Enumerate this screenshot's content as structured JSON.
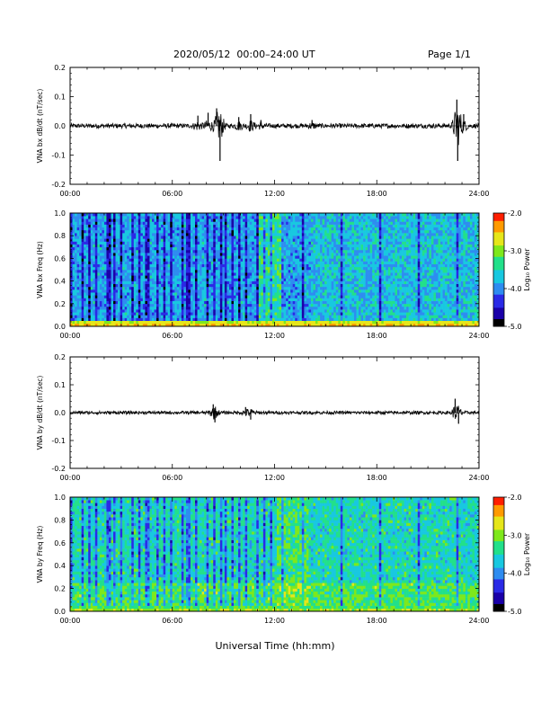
{
  "header": {
    "title": "2020/05/12  00:00–24:00 UT",
    "page": "Page 1/1"
  },
  "xlabel": "Universal Time (hh:mm)",
  "colors": {
    "trace": "#000000",
    "colormap": [
      "#000000",
      "#1a00a8",
      "#2a2ae6",
      "#2e8cf0",
      "#18c8e0",
      "#22e08a",
      "#7ee81c",
      "#e6e61a",
      "#ff9a00",
      "#ff1e00"
    ]
  },
  "chart_data": [
    {
      "type": "line",
      "ylabel": "VNA bx dB/dt (nT/sec)",
      "xlim": [
        0,
        24
      ],
      "ylim": [
        -0.2,
        0.2
      ],
      "xticks": [
        "00:00",
        "06:00",
        "12:00",
        "18:00",
        "24:00"
      ],
      "yticks": [
        "-0.2",
        "-0.1",
        "0.0",
        "0.1",
        "0.2"
      ],
      "baseline": 0.0,
      "noise_amplitude": 0.008,
      "bursts": [
        {
          "t": 7.5,
          "amp": 0.035
        },
        {
          "t": 8.1,
          "amp": 0.045
        },
        {
          "t": 8.6,
          "amp": 0.06
        },
        {
          "t": 8.8,
          "amp": -0.12
        },
        {
          "t": 9.9,
          "amp": 0.03
        },
        {
          "t": 10.6,
          "amp": 0.04
        },
        {
          "t": 11.2,
          "amp": 0.02
        },
        {
          "t": 14.2,
          "amp": 0.02
        },
        {
          "t": 22.7,
          "amp": 0.09
        },
        {
          "t": 22.75,
          "amp": -0.12
        },
        {
          "t": 23.1,
          "amp": 0.04
        }
      ]
    },
    {
      "type": "heatmap",
      "ylabel": "VNA bx Freq (Hz)",
      "xlim": [
        0,
        24
      ],
      "ylim": [
        0.0,
        1.0
      ],
      "xticks": [
        "00:00",
        "06:00",
        "12:00",
        "18:00",
        "24:00"
      ],
      "yticks": [
        "0.0",
        "0.2",
        "0.4",
        "0.6",
        "0.8",
        "1.0"
      ],
      "colorbar": {
        "label": "Log₁₀ Power",
        "range": [
          -5.0,
          -2.0
        ],
        "ticks": [
          "-2.0",
          "-3.0",
          "-4.0",
          "-5.0"
        ]
      },
      "dominant": "blue, lower power above 0.1 Hz; green/yellow band below 0.05 Hz; dark vertical stripes 00:00–12:00"
    },
    {
      "type": "line",
      "ylabel": "VNA by dB/dt (nT/sec)",
      "xlim": [
        0,
        24
      ],
      "ylim": [
        -0.2,
        0.2
      ],
      "xticks": [
        "00:00",
        "06:00",
        "12:00",
        "18:00",
        "24:00"
      ],
      "yticks": [
        "-0.2",
        "-0.1",
        "0.0",
        "0.1",
        "0.2"
      ],
      "baseline": 0.0,
      "noise_amplitude": 0.006,
      "bursts": [
        {
          "t": 8.4,
          "amp": 0.03
        },
        {
          "t": 8.5,
          "amp": -0.035
        },
        {
          "t": 10.3,
          "amp": 0.02
        },
        {
          "t": 10.6,
          "amp": -0.025
        },
        {
          "t": 22.6,
          "amp": 0.05
        },
        {
          "t": 22.8,
          "amp": -0.04
        }
      ]
    },
    {
      "type": "heatmap",
      "ylabel": "VNA by Freq (Hz)",
      "xlim": [
        0,
        24
      ],
      "ylim": [
        0.0,
        1.0
      ],
      "xticks": [
        "00:00",
        "06:00",
        "12:00",
        "18:00",
        "24:00"
      ],
      "yticks": [
        "0.0",
        "0.2",
        "0.4",
        "0.6",
        "0.8",
        "1.0"
      ],
      "colorbar": {
        "label": "Log₁₀ Power",
        "range": [
          -5.0,
          -2.0
        ],
        "ticks": [
          "-2.0",
          "-3.0",
          "-4.0",
          "-5.0"
        ]
      },
      "dominant": "cyan/green mix with blue vertical stripes; greener below 0.2 Hz"
    }
  ]
}
